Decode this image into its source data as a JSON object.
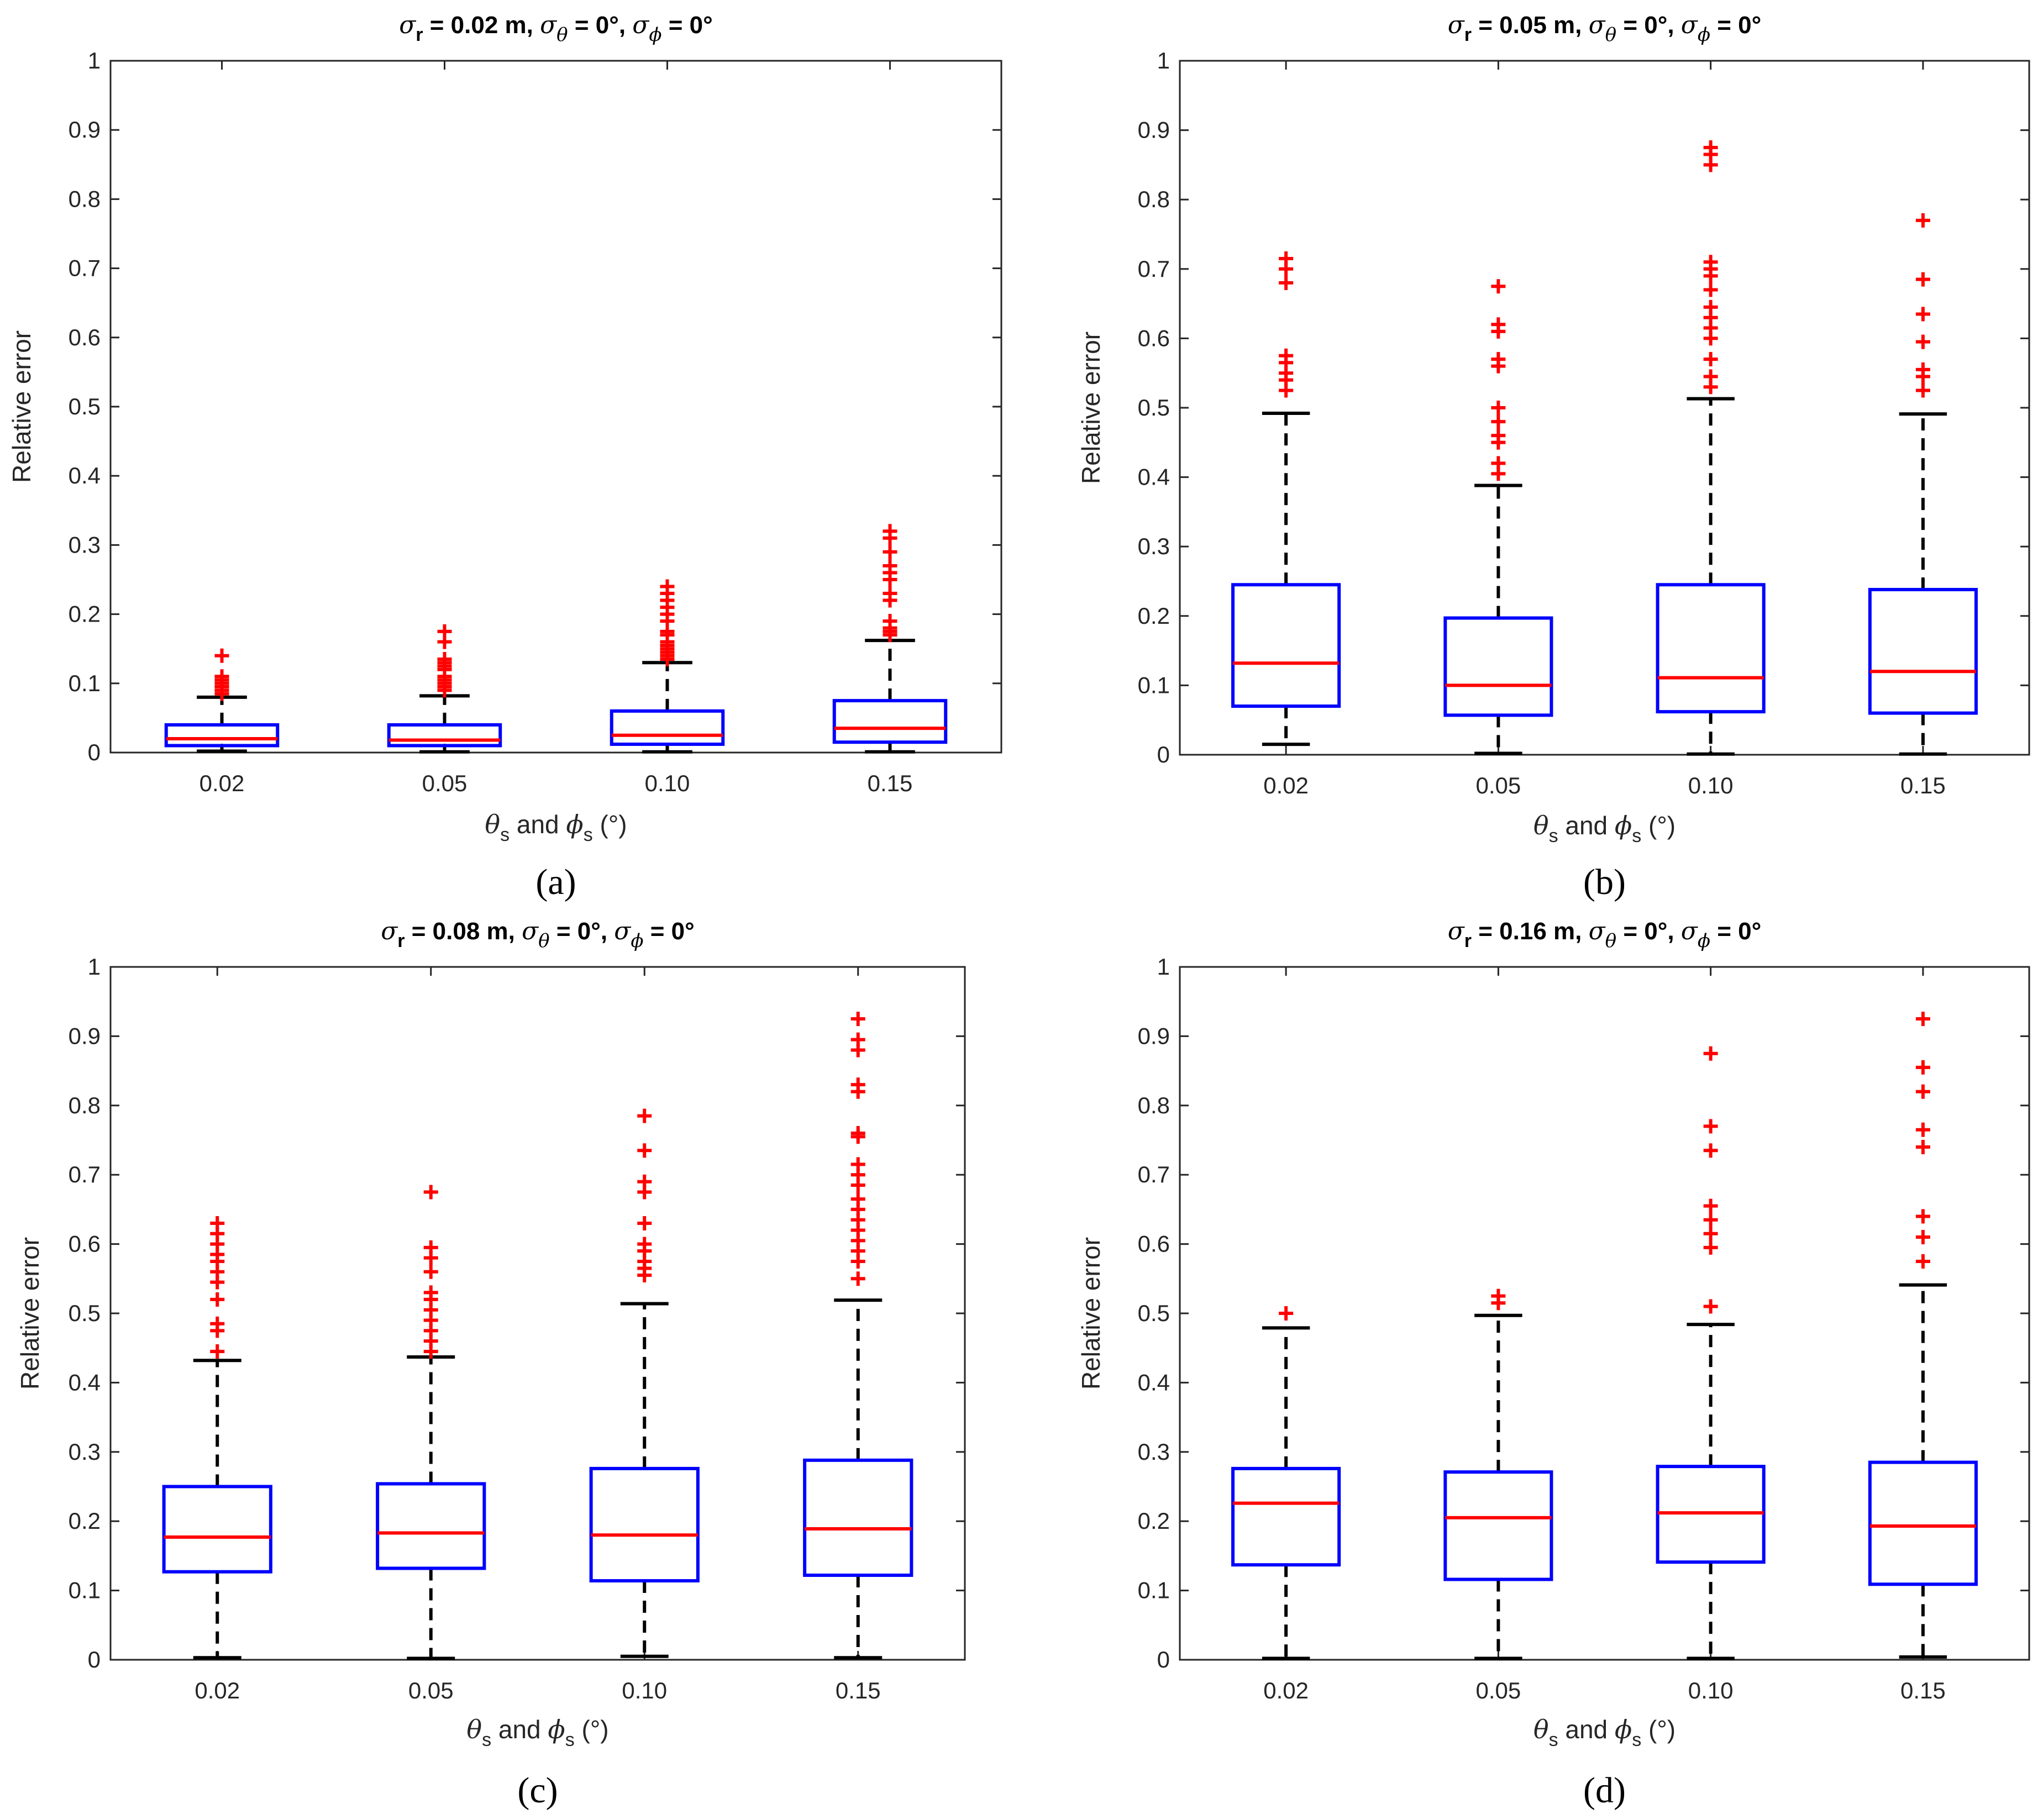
{
  "figure": {
    "panel_labels": [
      "(a)",
      "(b)",
      "(c)",
      "(d)"
    ]
  },
  "colors": {
    "box": "#0000ff",
    "median": "#ff0000",
    "outlier": "#ff0000",
    "whisker": "#000000",
    "axis": "#262626"
  },
  "chart_data": [
    {
      "type": "box",
      "title": {
        "sigma_r_value": "0.02 m",
        "sigma_theta_value": "0°",
        "sigma_phi_value": "0°"
      },
      "panel_label": "(a)",
      "xlabel": {
        "sub": "s",
        "conj": "and",
        "unit": "(°)"
      },
      "ylabel": "Relative error",
      "ylim": [
        0,
        1
      ],
      "yticks": [
        "0",
        "0.1",
        "0.2",
        "0.3",
        "0.4",
        "0.5",
        "0.6",
        "0.7",
        "0.8",
        "0.9",
        "1"
      ],
      "categories": [
        "0.02",
        "0.05",
        "0.10",
        "0.15"
      ],
      "boxes": [
        {
          "category": "0.02",
          "whisker_low": 0.002,
          "q1": 0.01,
          "median": 0.02,
          "q3": 0.04,
          "whisker_high": 0.08,
          "outliers": [
            0.085,
            0.09,
            0.095,
            0.1,
            0.105,
            0.11,
            0.14
          ]
        },
        {
          "category": "0.05",
          "whisker_low": 0.001,
          "q1": 0.01,
          "median": 0.018,
          "q3": 0.04,
          "whisker_high": 0.082,
          "outliers": [
            0.09,
            0.095,
            0.1,
            0.105,
            0.11,
            0.12,
            0.125,
            0.13,
            0.135,
            0.16,
            0.175
          ]
        },
        {
          "category": "0.10",
          "whisker_low": 0.001,
          "q1": 0.012,
          "median": 0.025,
          "q3": 0.06,
          "whisker_high": 0.13,
          "outliers": [
            0.135,
            0.14,
            0.145,
            0.15,
            0.155,
            0.16,
            0.17,
            0.175,
            0.19,
            0.2,
            0.21,
            0.22,
            0.23,
            0.24
          ]
        },
        {
          "category": "0.15",
          "whisker_low": 0.001,
          "q1": 0.015,
          "median": 0.035,
          "q3": 0.075,
          "whisker_high": 0.162,
          "outliers": [
            0.17,
            0.175,
            0.18,
            0.19,
            0.22,
            0.23,
            0.25,
            0.26,
            0.27,
            0.29,
            0.31,
            0.32
          ]
        }
      ]
    },
    {
      "type": "box",
      "title": {
        "sigma_r_value": "0.05 m",
        "sigma_theta_value": "0°",
        "sigma_phi_value": "0°"
      },
      "panel_label": "(b)",
      "xlabel": {
        "sub": "s",
        "conj": "and",
        "unit": "(°)"
      },
      "ylabel": "Relative error",
      "ylim": [
        0,
        1
      ],
      "yticks": [
        "0",
        "0.1",
        "0.2",
        "0.3",
        "0.4",
        "0.5",
        "0.6",
        "0.7",
        "0.8",
        "0.9",
        "1"
      ],
      "categories": [
        "0.02",
        "0.05",
        "0.10",
        "0.15"
      ],
      "boxes": [
        {
          "category": "0.02",
          "whisker_low": 0.015,
          "q1": 0.07,
          "median": 0.132,
          "q3": 0.245,
          "whisker_high": 0.492,
          "outliers": [
            0.525,
            0.54,
            0.55,
            0.565,
            0.575,
            0.68,
            0.7,
            0.715
          ]
        },
        {
          "category": "0.05",
          "whisker_low": 0.002,
          "q1": 0.057,
          "median": 0.1,
          "q3": 0.197,
          "whisker_high": 0.388,
          "outliers": [
            0.405,
            0.42,
            0.45,
            0.46,
            0.48,
            0.5,
            0.56,
            0.57,
            0.61,
            0.62,
            0.675
          ]
        },
        {
          "category": "0.10",
          "whisker_low": 0.001,
          "q1": 0.062,
          "median": 0.111,
          "q3": 0.245,
          "whisker_high": 0.513,
          "outliers": [
            0.53,
            0.545,
            0.57,
            0.6,
            0.615,
            0.63,
            0.645,
            0.67,
            0.69,
            0.7,
            0.71,
            0.85,
            0.865,
            0.875
          ]
        },
        {
          "category": "0.15",
          "whisker_low": 0.001,
          "q1": 0.06,
          "median": 0.12,
          "q3": 0.238,
          "whisker_high": 0.491,
          "outliers": [
            0.525,
            0.545,
            0.555,
            0.595,
            0.635,
            0.685,
            0.77
          ]
        }
      ]
    },
    {
      "type": "box",
      "title": {
        "sigma_r_value": "0.08 m",
        "sigma_theta_value": "0°",
        "sigma_phi_value": "0°"
      },
      "panel_label": "(c)",
      "xlabel": {
        "sub": "s",
        "conj": "and",
        "unit": "(°)"
      },
      "ylabel": "Relative error",
      "ylim": [
        0,
        1
      ],
      "yticks": [
        "0",
        "0.1",
        "0.2",
        "0.3",
        "0.4",
        "0.5",
        "0.6",
        "0.7",
        "0.8",
        "0.9",
        "1"
      ],
      "categories": [
        "0.02",
        "0.05",
        "0.10",
        "0.15"
      ],
      "boxes": [
        {
          "category": "0.02",
          "whisker_low": 0.003,
          "q1": 0.127,
          "median": 0.177,
          "q3": 0.25,
          "whisker_high": 0.432,
          "outliers": [
            0.445,
            0.475,
            0.485,
            0.52,
            0.545,
            0.56,
            0.575,
            0.585,
            0.6,
            0.615,
            0.63
          ]
        },
        {
          "category": "0.05",
          "whisker_low": 0.002,
          "q1": 0.132,
          "median": 0.183,
          "q3": 0.254,
          "whisker_high": 0.437,
          "outliers": [
            0.445,
            0.46,
            0.475,
            0.49,
            0.505,
            0.52,
            0.53,
            0.56,
            0.58,
            0.595,
            0.675
          ]
        },
        {
          "category": "0.10",
          "whisker_low": 0.005,
          "q1": 0.114,
          "median": 0.18,
          "q3": 0.276,
          "whisker_high": 0.514,
          "outliers": [
            0.555,
            0.565,
            0.575,
            0.59,
            0.6,
            0.63,
            0.675,
            0.69,
            0.735,
            0.785
          ]
        },
        {
          "category": "0.15",
          "whisker_low": 0.003,
          "q1": 0.122,
          "median": 0.189,
          "q3": 0.288,
          "whisker_high": 0.519,
          "outliers": [
            0.55,
            0.575,
            0.59,
            0.605,
            0.62,
            0.635,
            0.65,
            0.665,
            0.685,
            0.7,
            0.715,
            0.755,
            0.76,
            0.82,
            0.83,
            0.88,
            0.895,
            0.925
          ]
        }
      ]
    },
    {
      "type": "box",
      "title": {
        "sigma_r_value": "0.16 m",
        "sigma_theta_value": "0°",
        "sigma_phi_value": "0°"
      },
      "panel_label": "(d)",
      "xlabel": {
        "sub": "s",
        "conj": "and",
        "unit": "(°)"
      },
      "ylabel": "Relative error",
      "ylim": [
        0,
        1
      ],
      "yticks": [
        "0",
        "0.1",
        "0.2",
        "0.3",
        "0.4",
        "0.5",
        "0.6",
        "0.7",
        "0.8",
        "0.9",
        "1"
      ],
      "categories": [
        "0.02",
        "0.05",
        "0.10",
        "0.15"
      ],
      "boxes": [
        {
          "category": "0.02",
          "whisker_low": 0.002,
          "q1": 0.137,
          "median": 0.226,
          "q3": 0.276,
          "whisker_high": 0.479,
          "outliers": [
            0.5
          ]
        },
        {
          "category": "0.05",
          "whisker_low": 0.002,
          "q1": 0.116,
          "median": 0.205,
          "q3": 0.271,
          "whisker_high": 0.497,
          "outliers": [
            0.515,
            0.525
          ]
        },
        {
          "category": "0.10",
          "whisker_low": 0.002,
          "q1": 0.141,
          "median": 0.212,
          "q3": 0.279,
          "whisker_high": 0.484,
          "outliers": [
            0.51,
            0.595,
            0.615,
            0.635,
            0.655,
            0.735,
            0.77,
            0.875
          ]
        },
        {
          "category": "0.15",
          "whisker_low": 0.004,
          "q1": 0.109,
          "median": 0.193,
          "q3": 0.285,
          "whisker_high": 0.541,
          "outliers": [
            0.575,
            0.61,
            0.64,
            0.74,
            0.765,
            0.82,
            0.855,
            0.925
          ]
        }
      ]
    }
  ]
}
